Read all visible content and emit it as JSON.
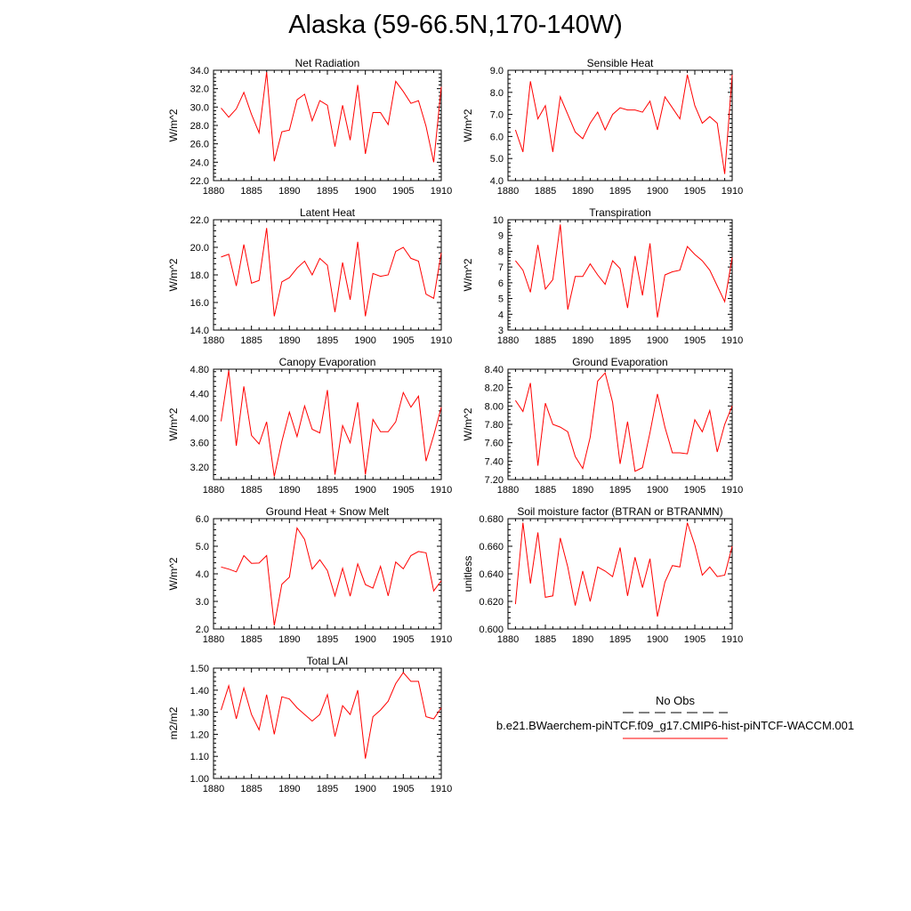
{
  "title": "Alaska (59-66.5N,170-140W)",
  "legend": {
    "obs_label": "No Obs",
    "model_label": "b.e21.BWaerchem-piNTCF.f09_g17.CMIP6-hist-piNTCF-WACCM.001",
    "obs_color": "#000000",
    "model_color": "#ff0000"
  },
  "chart_data": [
    {
      "type": "line",
      "title": "Net Radiation",
      "ylabel": "W/m^2",
      "xlim": [
        1880,
        1910
      ],
      "ylim": [
        22.0,
        34.0
      ],
      "x_ticks": [
        "1880",
        "1885",
        "1890",
        "1895",
        "1900",
        "1905",
        "1910"
      ],
      "y_ticks": [
        "22.0",
        "24.0",
        "26.0",
        "28.0",
        "30.0",
        "32.0",
        "34.0"
      ],
      "series": [
        {
          "color": "#ff0000",
          "x": [
            1881,
            1882,
            1883,
            1884,
            1885,
            1886,
            1887,
            1888,
            1889,
            1890,
            1891,
            1892,
            1893,
            1894,
            1895,
            1896,
            1897,
            1898,
            1899,
            1900,
            1901,
            1902,
            1903,
            1904,
            1905,
            1906,
            1907,
            1908,
            1909,
            1910
          ],
          "values": [
            29.9,
            28.9,
            29.8,
            31.6,
            29.2,
            27.2,
            33.8,
            24.1,
            27.3,
            27.5,
            30.8,
            31.4,
            28.5,
            30.7,
            30.2,
            25.7,
            30.2,
            26.4,
            32.4,
            24.9,
            29.4,
            29.4,
            28.1,
            32.8,
            31.7,
            30.4,
            30.7,
            27.9,
            24.0,
            32.2
          ]
        }
      ]
    },
    {
      "type": "line",
      "title": "Sensible Heat",
      "ylabel": "W/m^2",
      "xlim": [
        1880,
        1910
      ],
      "ylim": [
        4.0,
        9.0
      ],
      "x_ticks": [
        "1880",
        "1885",
        "1890",
        "1895",
        "1900",
        "1905",
        "1910"
      ],
      "y_ticks": [
        "4.0",
        "5.0",
        "6.0",
        "7.0",
        "8.0",
        "9.0"
      ],
      "series": [
        {
          "color": "#ff0000",
          "x": [
            1881,
            1882,
            1883,
            1884,
            1885,
            1886,
            1887,
            1888,
            1889,
            1890,
            1891,
            1892,
            1893,
            1894,
            1895,
            1896,
            1897,
            1898,
            1899,
            1900,
            1901,
            1902,
            1903,
            1904,
            1905,
            1906,
            1907,
            1908,
            1909,
            1910
          ],
          "values": [
            6.3,
            5.3,
            8.5,
            6.8,
            7.4,
            5.3,
            7.8,
            7.0,
            6.2,
            5.9,
            6.6,
            7.1,
            6.3,
            7.0,
            7.3,
            7.2,
            7.2,
            7.1,
            7.6,
            6.3,
            7.8,
            7.3,
            6.8,
            8.8,
            7.4,
            6.6,
            6.9,
            6.6,
            4.3,
            8.8
          ]
        }
      ]
    },
    {
      "type": "line",
      "title": "Latent Heat",
      "ylabel": "W/m^2",
      "xlim": [
        1880,
        1910
      ],
      "ylim": [
        14.0,
        22.0
      ],
      "x_ticks": [
        "1880",
        "1885",
        "1890",
        "1895",
        "1900",
        "1905",
        "1910"
      ],
      "y_ticks": [
        "14.0",
        "16.0",
        "18.0",
        "20.0",
        "22.0"
      ],
      "series": [
        {
          "color": "#ff0000",
          "x": [
            1881,
            1882,
            1883,
            1884,
            1885,
            1886,
            1887,
            1888,
            1889,
            1890,
            1891,
            1892,
            1893,
            1894,
            1895,
            1896,
            1897,
            1898,
            1899,
            1900,
            1901,
            1902,
            1903,
            1904,
            1905,
            1906,
            1907,
            1908,
            1909,
            1910
          ],
          "values": [
            19.3,
            19.5,
            17.2,
            20.2,
            17.4,
            17.6,
            21.4,
            15.0,
            17.5,
            17.8,
            18.5,
            19.0,
            18.0,
            19.2,
            18.7,
            15.3,
            18.9,
            16.2,
            20.4,
            15.0,
            18.1,
            17.9,
            18.0,
            19.7,
            20.0,
            19.2,
            19.0,
            16.6,
            16.3,
            19.6
          ]
        }
      ]
    },
    {
      "type": "line",
      "title": "Transpiration",
      "ylabel": "W/m^2",
      "xlim": [
        1880,
        1910
      ],
      "ylim": [
        3,
        10
      ],
      "x_ticks": [
        "1880",
        "1885",
        "1890",
        "1895",
        "1900",
        "1905",
        "1910"
      ],
      "y_ticks": [
        "3",
        "4",
        "5",
        "6",
        "7",
        "8",
        "9",
        "10"
      ],
      "series": [
        {
          "color": "#ff0000",
          "x": [
            1881,
            1882,
            1883,
            1884,
            1885,
            1886,
            1887,
            1888,
            1889,
            1890,
            1891,
            1892,
            1893,
            1894,
            1895,
            1896,
            1897,
            1898,
            1899,
            1900,
            1901,
            1902,
            1903,
            1904,
            1905,
            1906,
            1907,
            1908,
            1909,
            1910
          ],
          "values": [
            7.4,
            6.8,
            5.4,
            8.4,
            5.6,
            6.2,
            9.7,
            4.3,
            6.4,
            6.4,
            7.2,
            6.5,
            5.9,
            7.4,
            6.9,
            4.4,
            7.7,
            5.2,
            8.5,
            3.8,
            6.5,
            6.7,
            6.8,
            8.3,
            7.8,
            7.4,
            6.8,
            5.8,
            4.8,
            7.6
          ]
        }
      ]
    },
    {
      "type": "line",
      "title": "Canopy Evaporation",
      "ylabel": "W/m^2",
      "xlim": [
        1880,
        1910
      ],
      "ylim": [
        3.0,
        4.8
      ],
      "x_ticks": [
        "1880",
        "1885",
        "1890",
        "1895",
        "1900",
        "1905",
        "1910"
      ],
      "y_ticks": [
        "3.20",
        "3.60",
        "4.00",
        "4.40",
        "4.80"
      ],
      "series": [
        {
          "color": "#ff0000",
          "x": [
            1881,
            1882,
            1883,
            1884,
            1885,
            1886,
            1887,
            1888,
            1889,
            1890,
            1891,
            1892,
            1893,
            1894,
            1895,
            1896,
            1897,
            1898,
            1899,
            1900,
            1901,
            1902,
            1903,
            1904,
            1905,
            1906,
            1907,
            1908,
            1909,
            1910
          ],
          "values": [
            3.95,
            4.78,
            3.55,
            4.52,
            3.72,
            3.58,
            3.94,
            3.05,
            3.62,
            4.1,
            3.7,
            4.2,
            3.82,
            3.76,
            4.46,
            3.08,
            3.88,
            3.6,
            4.26,
            3.08,
            3.98,
            3.78,
            3.78,
            3.94,
            4.42,
            4.18,
            4.36,
            3.3,
            3.72,
            4.18
          ]
        }
      ]
    },
    {
      "type": "line",
      "title": "Ground Evaporation",
      "ylabel": "W/m^2",
      "xlim": [
        1880,
        1910
      ],
      "ylim": [
        7.2,
        8.4
      ],
      "x_ticks": [
        "1880",
        "1885",
        "1890",
        "1895",
        "1900",
        "1905",
        "1910"
      ],
      "y_ticks": [
        "7.20",
        "7.40",
        "7.60",
        "7.80",
        "8.00",
        "8.20",
        "8.40"
      ],
      "series": [
        {
          "color": "#ff0000",
          "x": [
            1881,
            1882,
            1883,
            1884,
            1885,
            1886,
            1887,
            1888,
            1889,
            1890,
            1891,
            1892,
            1893,
            1894,
            1895,
            1896,
            1897,
            1898,
            1899,
            1900,
            1901,
            1902,
            1903,
            1904,
            1905,
            1906,
            1907,
            1908,
            1909,
            1910
          ],
          "values": [
            8.06,
            7.94,
            8.25,
            7.35,
            8.03,
            7.8,
            7.77,
            7.72,
            7.45,
            7.32,
            7.66,
            8.27,
            8.36,
            8.04,
            7.37,
            7.83,
            7.29,
            7.33,
            7.71,
            8.13,
            7.77,
            7.49,
            7.49,
            7.48,
            7.85,
            7.72,
            7.95,
            7.5,
            7.8,
            8.0
          ]
        }
      ]
    },
    {
      "type": "line",
      "title": "Ground Heat + Snow Melt",
      "ylabel": "W/m^2",
      "xlim": [
        1880,
        1910
      ],
      "ylim": [
        2.0,
        6.0
      ],
      "x_ticks": [
        "1880",
        "1885",
        "1890",
        "1895",
        "1900",
        "1905",
        "1910"
      ],
      "y_ticks": [
        "2.0",
        "3.0",
        "4.0",
        "5.0",
        "6.0"
      ],
      "series": [
        {
          "color": "#ff0000",
          "x": [
            1881,
            1882,
            1883,
            1884,
            1885,
            1886,
            1887,
            1888,
            1889,
            1890,
            1891,
            1892,
            1893,
            1894,
            1895,
            1896,
            1897,
            1898,
            1899,
            1900,
            1901,
            1902,
            1903,
            1904,
            1905,
            1906,
            1907,
            1908,
            1909,
            1910
          ],
          "values": [
            4.25,
            4.17,
            4.07,
            4.66,
            4.38,
            4.39,
            4.66,
            2.13,
            3.62,
            3.88,
            5.66,
            5.25,
            4.17,
            4.51,
            4.12,
            3.2,
            4.2,
            3.19,
            4.36,
            3.61,
            3.48,
            4.27,
            3.2,
            4.43,
            4.18,
            4.66,
            4.81,
            4.76,
            3.38,
            3.75
          ]
        }
      ]
    },
    {
      "type": "line",
      "title": "Soil moisture factor (BTRAN or BTRANMN)",
      "ylabel": "unitless",
      "xlim": [
        1880,
        1910
      ],
      "ylim": [
        0.6,
        0.68
      ],
      "x_ticks": [
        "1880",
        "1885",
        "1890",
        "1895",
        "1900",
        "1905",
        "1910"
      ],
      "y_ticks": [
        "0.600",
        "0.620",
        "0.640",
        "0.660",
        "0.680"
      ],
      "series": [
        {
          "color": "#ff0000",
          "x": [
            1881,
            1882,
            1883,
            1884,
            1885,
            1886,
            1887,
            1888,
            1889,
            1890,
            1891,
            1892,
            1893,
            1894,
            1895,
            1896,
            1897,
            1898,
            1899,
            1900,
            1901,
            1902,
            1903,
            1904,
            1905,
            1906,
            1907,
            1908,
            1909,
            1910
          ],
          "values": [
            0.618,
            0.677,
            0.633,
            0.67,
            0.623,
            0.624,
            0.666,
            0.645,
            0.617,
            0.642,
            0.62,
            0.645,
            0.642,
            0.638,
            0.659,
            0.624,
            0.652,
            0.63,
            0.651,
            0.609,
            0.634,
            0.646,
            0.645,
            0.677,
            0.661,
            0.639,
            0.645,
            0.638,
            0.639,
            0.66
          ]
        }
      ]
    },
    {
      "type": "line",
      "title": "Total LAI",
      "ylabel": "m2/m2",
      "xlim": [
        1880,
        1910
      ],
      "ylim": [
        1.0,
        1.5
      ],
      "x_ticks": [
        "1880",
        "1885",
        "1890",
        "1895",
        "1900",
        "1905",
        "1910"
      ],
      "y_ticks": [
        "1.00",
        "1.10",
        "1.20",
        "1.30",
        "1.40",
        "1.50"
      ],
      "series": [
        {
          "color": "#ff0000",
          "x": [
            1881,
            1882,
            1883,
            1884,
            1885,
            1886,
            1887,
            1888,
            1889,
            1890,
            1891,
            1892,
            1893,
            1894,
            1895,
            1896,
            1897,
            1898,
            1899,
            1900,
            1901,
            1902,
            1903,
            1904,
            1905,
            1906,
            1907,
            1908,
            1909,
            1910
          ],
          "values": [
            1.31,
            1.42,
            1.27,
            1.41,
            1.29,
            1.22,
            1.38,
            1.2,
            1.37,
            1.36,
            1.32,
            1.29,
            1.26,
            1.29,
            1.38,
            1.19,
            1.33,
            1.29,
            1.4,
            1.09,
            1.28,
            1.31,
            1.35,
            1.43,
            1.48,
            1.44,
            1.44,
            1.28,
            1.27,
            1.32
          ]
        }
      ]
    }
  ]
}
